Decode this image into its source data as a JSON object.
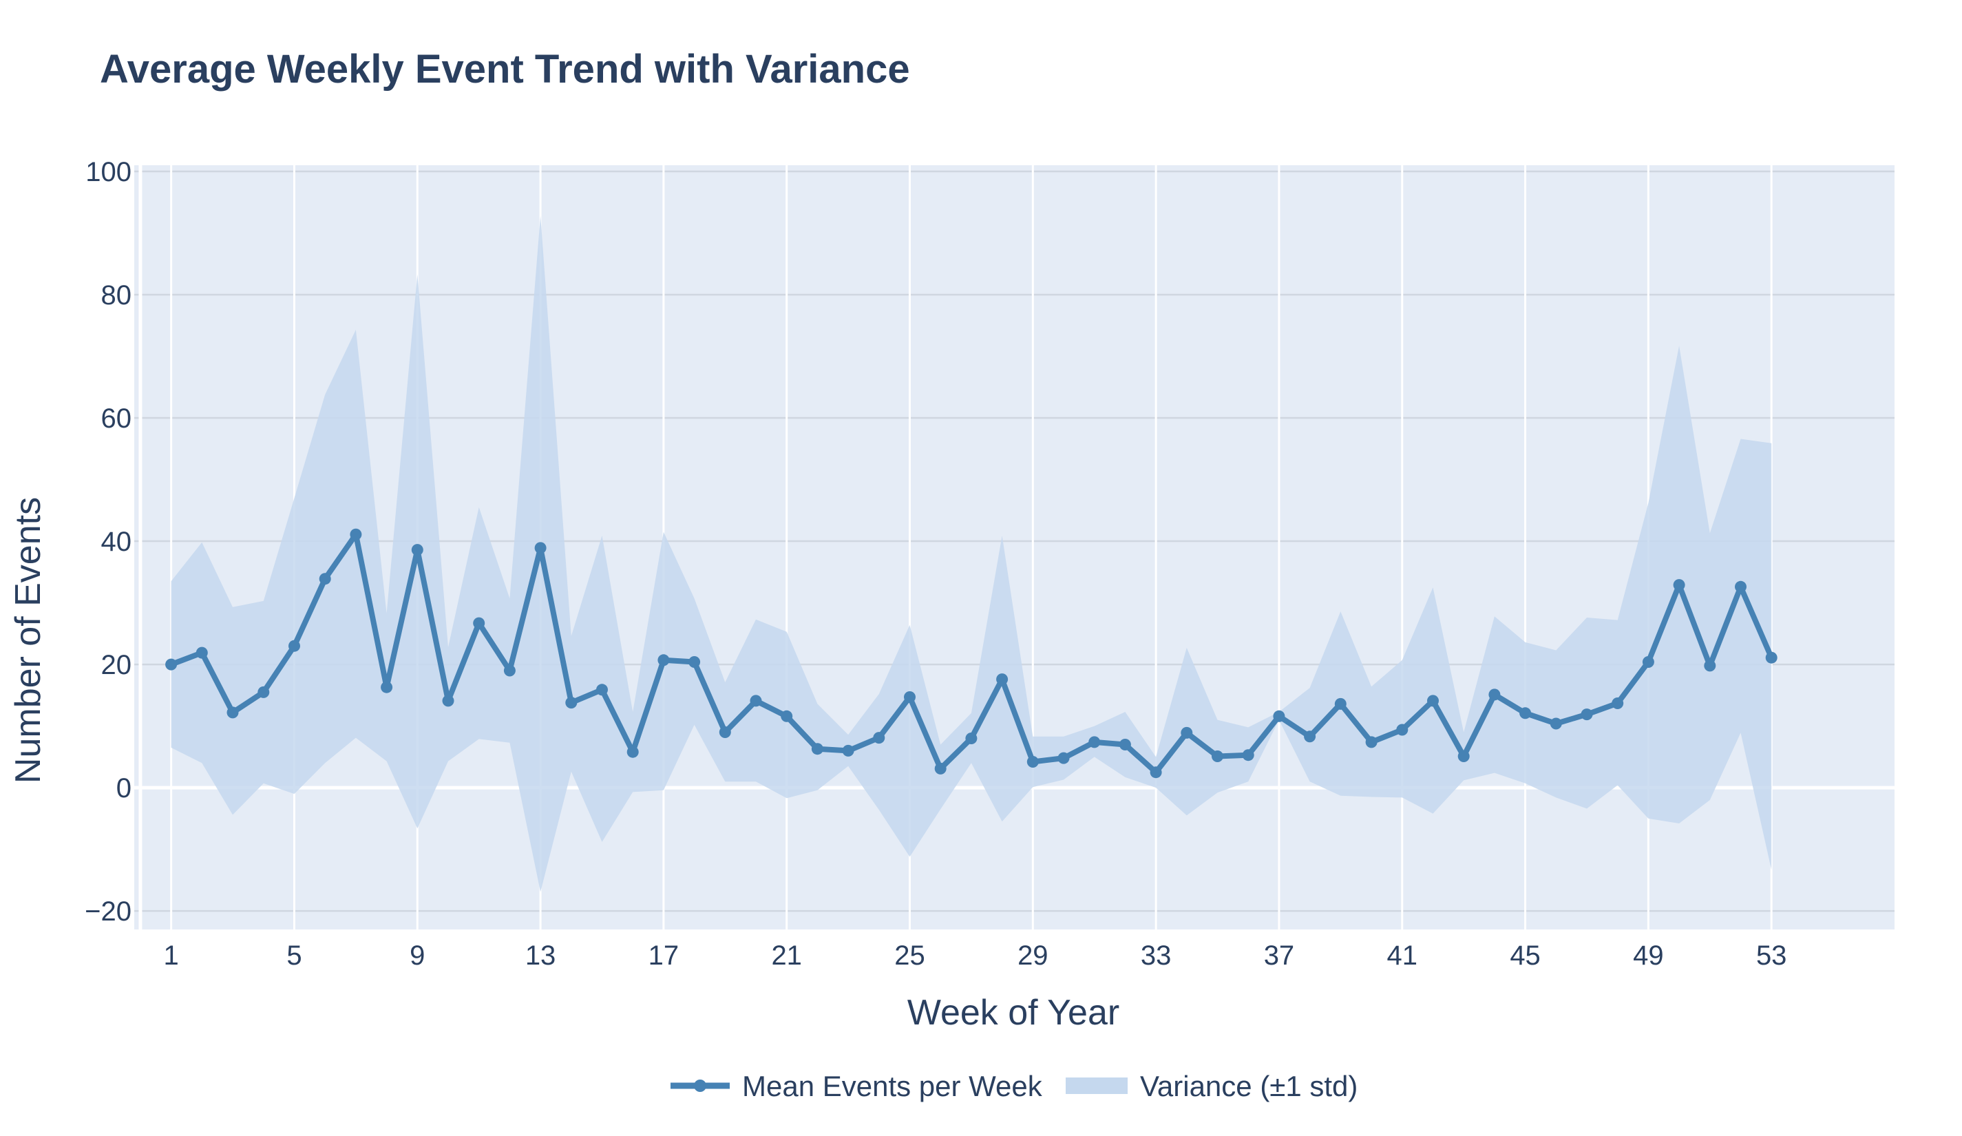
{
  "chart_data": {
    "type": "line",
    "title": "Average Weekly Event Trend with Variance",
    "xlabel": "Week of Year",
    "ylabel": "Number of Events",
    "xlim": [
      -0.2,
      57
    ],
    "ylim": [
      -23,
      101
    ],
    "x_ticks": [
      1,
      5,
      9,
      13,
      17,
      21,
      25,
      29,
      33,
      37,
      41,
      45,
      49,
      53
    ],
    "y_ticks": [
      -20,
      0,
      20,
      40,
      60,
      80,
      100
    ],
    "y_tick_labels": [
      "−20",
      "0",
      "20",
      "40",
      "60",
      "80",
      "100"
    ],
    "grid": true,
    "legend_position": "bottom-center",
    "colors": {
      "line": "#4682b4",
      "band": "#c5d8ee",
      "plot_bg": "#e5ecf6",
      "grid": "#ffffff",
      "text": "#2a3f5f"
    },
    "x": [
      1,
      2,
      3,
      4,
      5,
      6,
      7,
      8,
      9,
      10,
      11,
      12,
      13,
      14,
      15,
      16,
      17,
      18,
      19,
      20,
      21,
      22,
      23,
      24,
      25,
      26,
      27,
      28,
      29,
      30,
      31,
      32,
      33,
      34,
      35,
      36,
      37,
      38,
      39,
      40,
      41,
      42,
      43,
      44,
      45,
      46,
      47,
      48,
      49,
      50,
      51,
      52,
      53
    ],
    "series": [
      {
        "name": "Mean Events per Week",
        "values": [
          20.0,
          21.9,
          12.2,
          15.5,
          23.0,
          33.9,
          41.1,
          16.3,
          38.6,
          14.1,
          26.7,
          19.0,
          38.9,
          13.8,
          15.9,
          5.8,
          20.7,
          20.4,
          9.0,
          14.1,
          11.6,
          6.3,
          6.0,
          8.1,
          14.7,
          3.1,
          8.0,
          17.6,
          4.2,
          4.8,
          7.4,
          7.0,
          2.5,
          8.9,
          5.1,
          5.3,
          11.6,
          8.3,
          13.6,
          7.4,
          9.4,
          14.1,
          5.1,
          15.1,
          12.1,
          10.4,
          11.9,
          13.7,
          20.4,
          32.9,
          19.8,
          32.6,
          21.1
        ]
      },
      {
        "name": "Variance (±1 std)",
        "upper": [
          33.5,
          39.8,
          29.3,
          30.3,
          47.0,
          63.8,
          74.3,
          28.3,
          83.3,
          22.8,
          45.5,
          30.7,
          92.8,
          24.6,
          40.9,
          12.3,
          41.5,
          30.7,
          17.1,
          27.3,
          25.3,
          13.6,
          8.6,
          15.2,
          26.4,
          7.0,
          12.1,
          40.9,
          8.3,
          8.3,
          10.0,
          12.3,
          5.0,
          22.7,
          11.0,
          9.8,
          12.3,
          16.2,
          28.6,
          16.4,
          20.7,
          32.5,
          9.0,
          27.8,
          23.6,
          22.3,
          27.6,
          27.2,
          46.2,
          71.7,
          41.3,
          56.6,
          55.9
        ],
        "lower": [
          6.5,
          4.0,
          -4.4,
          0.7,
          -1.0,
          4.0,
          8.1,
          4.3,
          -6.6,
          4.3,
          7.9,
          7.3,
          -16.9,
          2.6,
          -8.8,
          -0.7,
          -0.4,
          10.2,
          1.0,
          1.0,
          -1.7,
          -0.4,
          3.5,
          -3.6,
          -11.2,
          -3.5,
          4.0,
          -5.5,
          0.1,
          1.3,
          5.0,
          1.7,
          0.0,
          -4.5,
          -0.8,
          1.0,
          11.0,
          1.0,
          -1.3,
          -1.5,
          -1.6,
          -4.2,
          1.2,
          2.4,
          0.7,
          -1.6,
          -3.4,
          0.4,
          -5.0,
          -5.8,
          -2.0,
          8.9,
          -13.3
        ]
      }
    ],
    "legend": [
      {
        "label": "Mean Events per Week"
      },
      {
        "label": "Variance (±1 std)"
      }
    ]
  }
}
